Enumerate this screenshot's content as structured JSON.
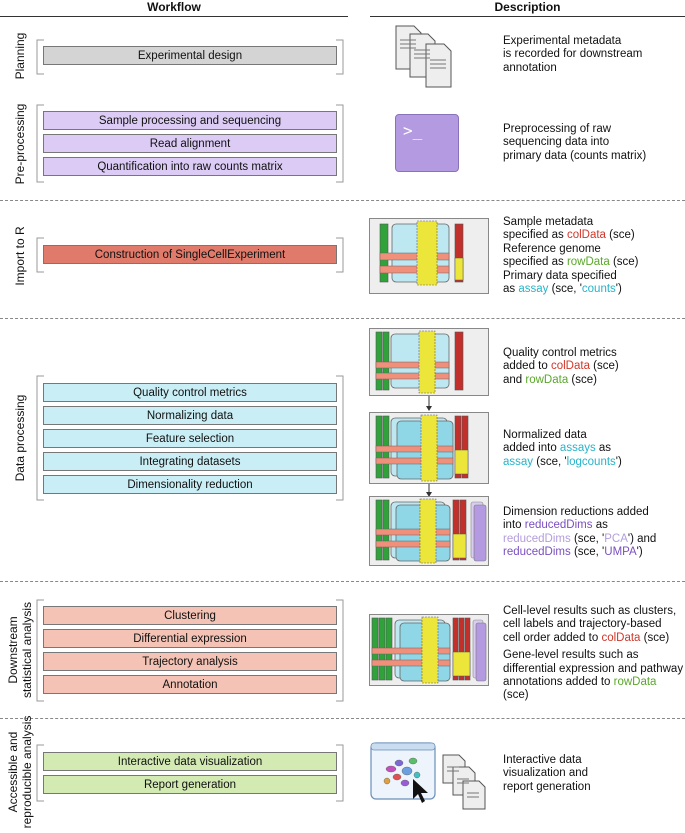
{
  "header": {
    "workflow": "Workflow",
    "description": "Description"
  },
  "sections": [
    {
      "label": "Planning"
    },
    {
      "label": "Pre-processing"
    },
    {
      "label": "Import to R"
    },
    {
      "label": "Data processing"
    },
    {
      "label_line1": "Downstream",
      "label_line2": "statistical analysis"
    },
    {
      "label_line1": "Accessible and",
      "label_line2": "reproducible analysis"
    }
  ],
  "steps": {
    "planning": [
      "Experimental design"
    ],
    "preprocessing": [
      "Sample processing and sequencing",
      "Read alignment",
      "Quantification into raw counts matrix"
    ],
    "import": [
      "Construction of SingleCellExperiment"
    ],
    "processing": [
      "Quality control metrics",
      "Normalizing data",
      "Feature selection",
      "Integrating datasets",
      "Dimensionality reduction"
    ],
    "downstream": [
      "Clustering",
      "Differential expression",
      "Trajectory analysis",
      "Annotation"
    ],
    "accessible": [
      "Interactive data visualization",
      "Report generation"
    ]
  },
  "descriptions": {
    "planning": [
      "Experimental metadata",
      "is recorded for downstream",
      "annotation"
    ],
    "preprocessing": [
      "Preprocessing of raw",
      "sequencing data into",
      "primary data (counts matrix)"
    ],
    "import": {
      "l1": "Sample metadata",
      "l2a": "specified as ",
      "l2b": "colData",
      "l2c": " (sce)",
      "l3": "Reference genome",
      "l4a": "specified as ",
      "l4b": "rowData",
      "l4c": " (sce)",
      "l5": "Primary data specified",
      "l6a": "as ",
      "l6b": "assay",
      "l6c": " (sce, '",
      "l6d": "counts",
      "l6e": "')"
    },
    "qc": {
      "l1": "Quality control metrics",
      "l2a": "added to ",
      "l2b": "colData",
      "l2c": " (sce)",
      "l3a": "and ",
      "l3b": "rowData",
      "l3c": " (sce)"
    },
    "norm": {
      "l1": "Normalized data",
      "l2a": "added into ",
      "l2b": "assays",
      "l2c": " as",
      "l3a": "assay",
      "l3b": " (sce, '",
      "l3c": "logcounts",
      "l3d": "')"
    },
    "dimred": {
      "l1": "Dimension reductions added",
      "l2a": "into ",
      "l2b": "reducedDims",
      "l2c": " as",
      "l3a": "reducedDims",
      "l3b": " (sce, '",
      "l3c": "PCA",
      "l3d": "') and",
      "l4a": "reducedDims",
      "l4b": " (sce, '",
      "l4c": "UMPA",
      "l4d": "')"
    },
    "downstream": {
      "l1": "Cell-level results such as clusters,",
      "l2": "cell labels and trajectory-based",
      "l3a": "cell order added to ",
      "l3b": "colData",
      "l3c": " (sce)",
      "l4": "Gene-level results such as",
      "l5": "differential expression and pathway",
      "l6a": "annotations added to ",
      "l6b": "rowData",
      "l6c": " (sce)"
    },
    "accessible": [
      "Interactive data",
      "visualization and",
      "report generation"
    ]
  },
  "icons": {
    "documents": "stacked-documents-icon",
    "terminal": "terminal-icon",
    "terminal_prompt": ">_",
    "sce": "sce-container-icon",
    "viz": "interactive-visualization-icon"
  },
  "colors": {
    "green": "#2fa33a",
    "pink": "#f08f7a",
    "cyan": "#bde8f2",
    "yellow": "#ece53a",
    "darkred": "#c2302c",
    "lavender": "#c9b8e8",
    "purple_box": "#b49ae0"
  }
}
